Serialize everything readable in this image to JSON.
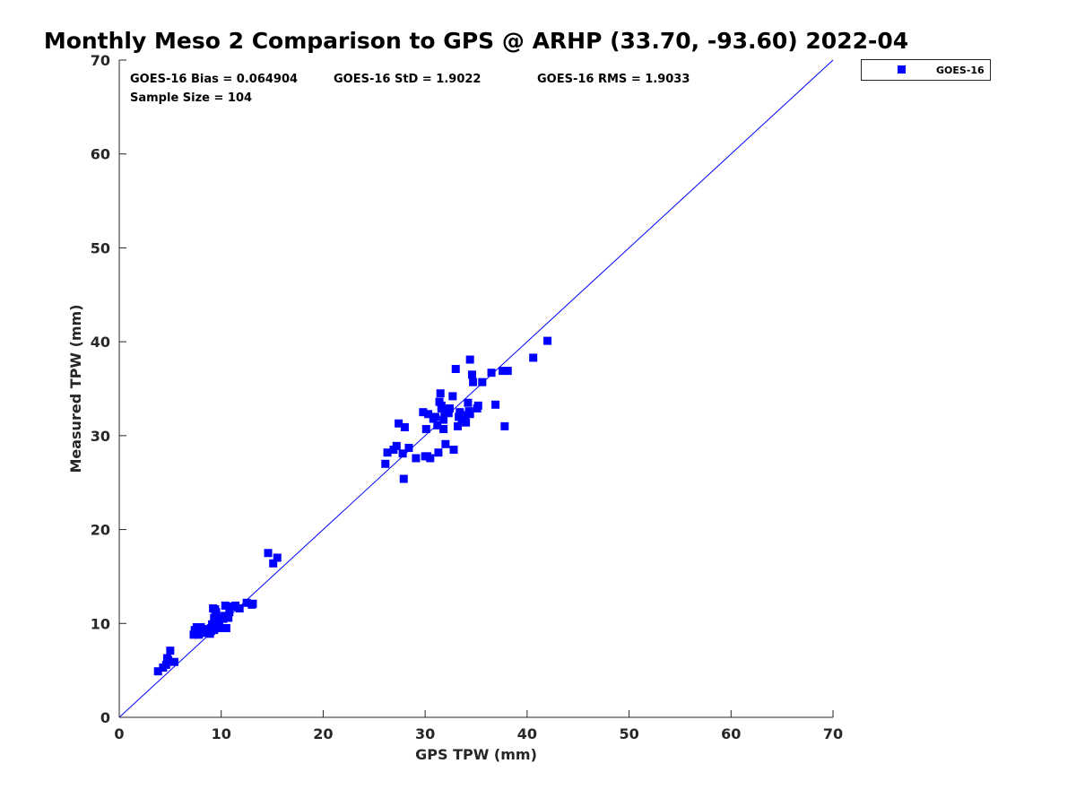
{
  "chart_data": {
    "type": "scatter",
    "title": "Monthly Meso 2 Comparison to GPS @ ARHP (33.70, -93.60) 2022-04",
    "xlabel": "GPS TPW (mm)",
    "ylabel": "Measured TPW (mm)",
    "xlim": [
      0,
      70
    ],
    "ylim": [
      0,
      70
    ],
    "xticks": [
      "0",
      "10",
      "20",
      "30",
      "40",
      "50",
      "60",
      "70"
    ],
    "yticks": [
      "0",
      "10",
      "20",
      "30",
      "40",
      "50",
      "60",
      "70"
    ],
    "grid": false,
    "legend_position": "outside-top-right",
    "reference_line": {
      "x": [
        0,
        70
      ],
      "y": [
        0,
        70
      ],
      "color": "#0000ff"
    },
    "annotations": {
      "bias": "GOES-16 Bias = 0.064904",
      "std": "GOES-16 StD = 1.9022",
      "rms": "GOES-16 RMS = 1.9033",
      "sample_size": "Sample Size = 104"
    },
    "series": [
      {
        "name": "GOES-16",
        "color": "#0000ff",
        "marker": "square",
        "x": [
          3.8,
          4.3,
          4.6,
          4.7,
          4.8,
          5.0,
          5.4,
          7.3,
          7.4,
          7.6,
          7.8,
          7.9,
          8.2,
          8.5,
          8.6,
          8.9,
          9.0,
          9.1,
          9.2,
          9.3,
          9.4,
          9.5,
          9.6,
          9.7,
          9.8,
          10.0,
          10.2,
          10.4,
          10.5,
          10.6,
          10.8,
          11.0,
          11.4,
          12.5,
          13.1,
          14.6,
          15.1,
          15.5,
          26.1,
          26.3,
          26.9,
          27.2,
          27.4,
          27.8,
          28.0,
          28.4,
          29.1,
          29.8,
          30.0,
          30.1,
          30.3,
          30.5,
          30.8,
          31.0,
          31.2,
          31.3,
          31.5,
          31.6,
          31.8,
          31.9,
          32.0,
          32.2,
          32.4,
          32.7,
          32.8,
          33.0,
          33.2,
          33.4,
          33.6,
          33.8,
          34.0,
          34.2,
          34.3,
          34.4,
          34.7,
          35.1,
          35.6,
          36.5,
          36.9,
          37.6,
          37.8,
          38.1,
          40.6,
          42.0,
          34.4,
          31.4,
          27.9,
          33.3,
          31.6,
          33.7,
          32.3,
          34.6,
          30.2,
          31.8,
          33.9,
          35.2,
          9.3,
          10.3,
          9.0,
          10.7,
          8.7,
          11.8,
          13.0,
          8.0
        ],
        "y": [
          4.9,
          5.3,
          5.6,
          6.3,
          6.1,
          7.1,
          5.9,
          8.8,
          9.3,
          9.6,
          8.8,
          9.5,
          9.4,
          9.0,
          9.3,
          8.9,
          9.5,
          9.9,
          11.6,
          10.6,
          11.5,
          11.2,
          10.5,
          9.6,
          9.7,
          9.5,
          10.5,
          11.9,
          9.5,
          10.8,
          11.2,
          11.8,
          11.9,
          12.2,
          12.1,
          17.5,
          16.4,
          17.0,
          27.0,
          28.2,
          28.5,
          28.9,
          31.3,
          28.1,
          30.9,
          28.7,
          27.6,
          32.5,
          27.8,
          30.7,
          32.3,
          27.6,
          31.8,
          32.0,
          31.1,
          28.2,
          34.5,
          33.2,
          30.7,
          32.4,
          29.1,
          32.7,
          32.9,
          34.2,
          28.5,
          37.1,
          31.0,
          32.5,
          31.7,
          31.8,
          31.4,
          33.5,
          32.6,
          32.3,
          35.7,
          32.9,
          35.7,
          36.7,
          33.3,
          36.9,
          31.0,
          36.9,
          38.3,
          40.1,
          38.1,
          33.6,
          25.4,
          32.0,
          32.9,
          32.2,
          32.4,
          36.5,
          27.8,
          31.7,
          32.1,
          33.2,
          9.3,
          10.8,
          9.2,
          10.6,
          9.0,
          11.6,
          12.0,
          9.6
        ]
      }
    ]
  }
}
